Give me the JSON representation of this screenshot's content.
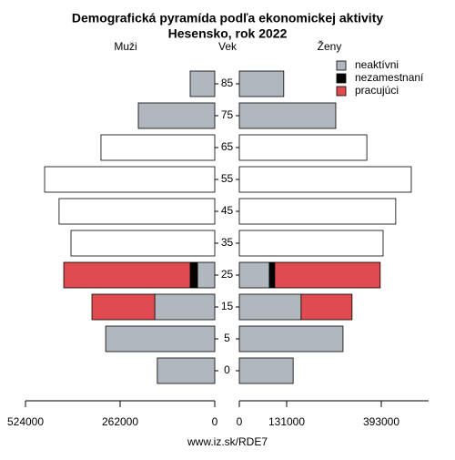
{
  "chart_data": {
    "type": "pyramid",
    "title": "Demografická pyramída podľa ekonomickej aktivity",
    "subtitle": "Hesensko, rok 2022",
    "left_label": "Muži",
    "center_label": "Vek",
    "right_label": "Ženy",
    "source": "www.iz.sk/RDE7",
    "categories": [
      "0",
      "5",
      "15",
      "25",
      "35",
      "45",
      "55",
      "65",
      "75",
      "85"
    ],
    "series": [
      {
        "name": "neaktívni",
        "color": "#b1b7bf",
        "male": [
          159000,
          302000,
          166000,
          48000,
          null,
          null,
          null,
          null,
          211600,
          68000
        ],
        "female": [
          149000,
          287000,
          171000,
          83000,
          null,
          null,
          null,
          null,
          267000,
          123000
        ]
      },
      {
        "name": "nezamestnaní",
        "color": "#000000",
        "male": [
          null,
          null,
          null,
          20000,
          null,
          null,
          null,
          null,
          null,
          null
        ],
        "female": [
          null,
          null,
          null,
          15000,
          null,
          null,
          null,
          null,
          null,
          null
        ]
      },
      {
        "name": "pracujúci",
        "color": "#e04b50",
        "male": [
          null,
          null,
          174000,
          350000,
          null,
          null,
          null,
          null,
          null,
          null
        ],
        "female": [
          null,
          null,
          141000,
          292000,
          null,
          null,
          null,
          null,
          null,
          null
        ]
      },
      {
        "color": "#ffffff",
        "male": [
          null,
          null,
          null,
          null,
          398000,
          431000,
          471000,
          315000,
          null,
          null
        ],
        "female": [
          null,
          null,
          null,
          null,
          398000,
          433000,
          476000,
          353000,
          null,
          null
        ]
      }
    ],
    "xlim_male": [
      524000,
      0
    ],
    "xticks_male": [
      524000,
      262000,
      0
    ],
    "xlim_female": [
      0,
      524000
    ],
    "xticks_female": [
      0,
      131000,
      393000
    ]
  }
}
